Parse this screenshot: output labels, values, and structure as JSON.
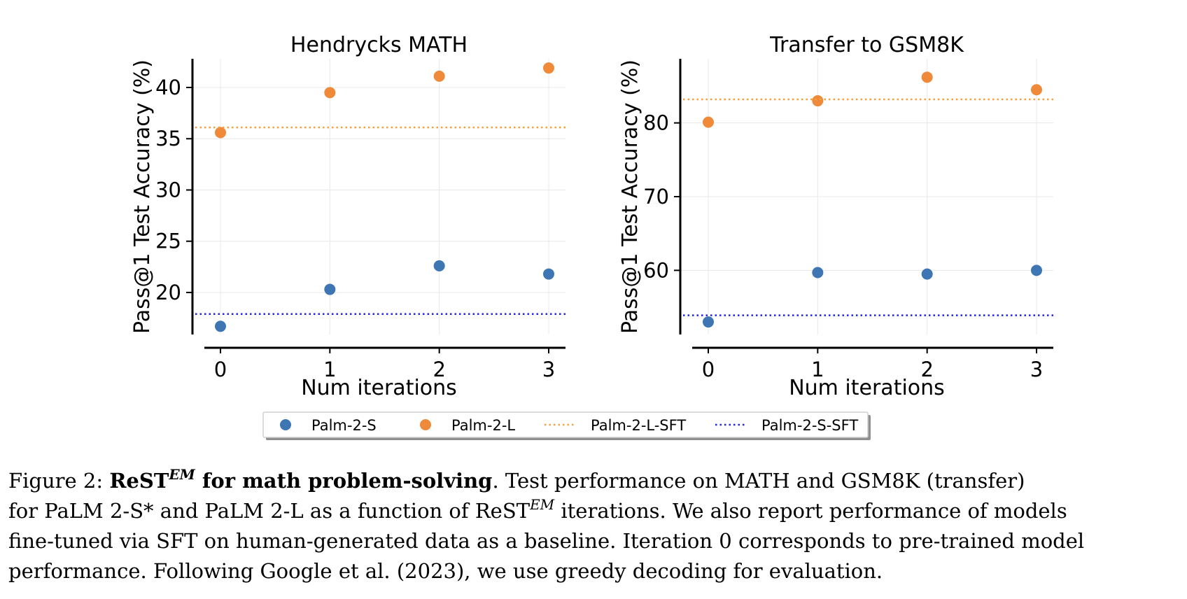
{
  "chart_data": [
    {
      "type": "scatter",
      "title": "Hendrycks MATH",
      "xlabel": "Num iterations",
      "ylabel": "Pass@1 Test Accuracy (%)",
      "x": [
        0,
        1,
        2,
        3
      ],
      "xticks": [
        "0",
        "1",
        "2",
        "3"
      ],
      "yticks": [
        "20",
        "25",
        "30",
        "35",
        "40"
      ],
      "ylim": [
        15.9,
        42.8
      ],
      "grid": true,
      "series": [
        {
          "name": "Palm-2-S",
          "kind": "points",
          "color": "#3d76b3",
          "values": [
            16.7,
            20.3,
            22.6,
            21.8
          ]
        },
        {
          "name": "Palm-2-L",
          "kind": "points",
          "color": "#ee8a3a",
          "values": [
            35.6,
            39.5,
            41.1,
            41.9
          ]
        },
        {
          "name": "Palm-2-L-SFT",
          "kind": "hline",
          "style": "dotted",
          "color": "#f5a23c",
          "value": 36.1
        },
        {
          "name": "Palm-2-S-SFT",
          "kind": "hline",
          "style": "dotted",
          "color": "#2323e6",
          "value": 17.9
        }
      ]
    },
    {
      "type": "scatter",
      "title": "Transfer to GSM8K",
      "xlabel": "Num iterations",
      "ylabel": "Pass@1 Test Accuracy (%)",
      "x": [
        0,
        1,
        2,
        3
      ],
      "xticks": [
        "0",
        "1",
        "2",
        "3"
      ],
      "yticks": [
        "60",
        "70",
        "80"
      ],
      "ylim": [
        51.3,
        88.7
      ],
      "grid": true,
      "series": [
        {
          "name": "Palm-2-S",
          "kind": "points",
          "color": "#3d76b3",
          "values": [
            53.0,
            59.7,
            59.5,
            60.0
          ]
        },
        {
          "name": "Palm-2-L",
          "kind": "points",
          "color": "#ee8a3a",
          "values": [
            80.1,
            83.0,
            86.2,
            84.5
          ]
        },
        {
          "name": "Palm-2-L-SFT",
          "kind": "hline",
          "style": "dotted",
          "color": "#f5a23c",
          "value": 83.2
        },
        {
          "name": "Palm-2-S-SFT",
          "kind": "hline",
          "style": "dotted",
          "color": "#2323e6",
          "value": 53.9
        }
      ]
    }
  ],
  "legend": {
    "placement": "bottom-center",
    "items": [
      "Palm-2-S",
      "Palm-2-L",
      "Palm-2-L-SFT",
      "Palm-2-S-SFT"
    ]
  },
  "caption": {
    "label": "Figure 2:",
    "bold_lead": "ReST",
    "superscript": "EM",
    "bold_tail": "for math problem-solving",
    "line1_rest": ". Test performance on MATH and GSM8K (transfer)",
    "line2_start": "for PaLM 2-S* and PaLM 2-L as a function of ReST",
    "line2_sup": "EM",
    "line2_end": " iterations. We also report performance of models",
    "line3": "fine-tuned via SFT on human-generated data as a baseline. Iteration 0 corresponds to pre-trained model",
    "line4": "performance. Following Google et al. (2023), we use greedy decoding for evaluation."
  }
}
